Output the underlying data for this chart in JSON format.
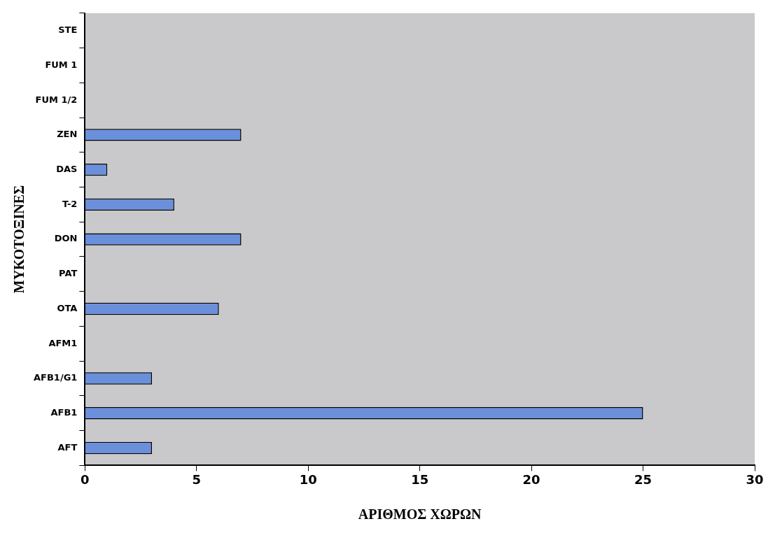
{
  "chart_data": {
    "type": "bar",
    "orientation": "horizontal",
    "xlabel": "ΑΡΙΘΜΟΣ ΧΩΡΩΝ",
    "ylabel": "ΜΥΚΟΤΟΞΙΝΕΣ",
    "categories": [
      "STE",
      "FUM 1",
      "FUM 1/2",
      "ZEN",
      "DAS",
      "T-2",
      "DON",
      "PAT",
      "OTA",
      "AFM1",
      "AFB1/G1",
      "AFB1",
      "AFT"
    ],
    "values": [
      0,
      0,
      0,
      7,
      1,
      4,
      7,
      0,
      6,
      0,
      3,
      25,
      3
    ],
    "color": "#6a8fdb",
    "xlim": [
      0,
      30
    ],
    "xticks": [
      0,
      5,
      10,
      15,
      20,
      25,
      30
    ],
    "grid": false,
    "legend": false
  }
}
